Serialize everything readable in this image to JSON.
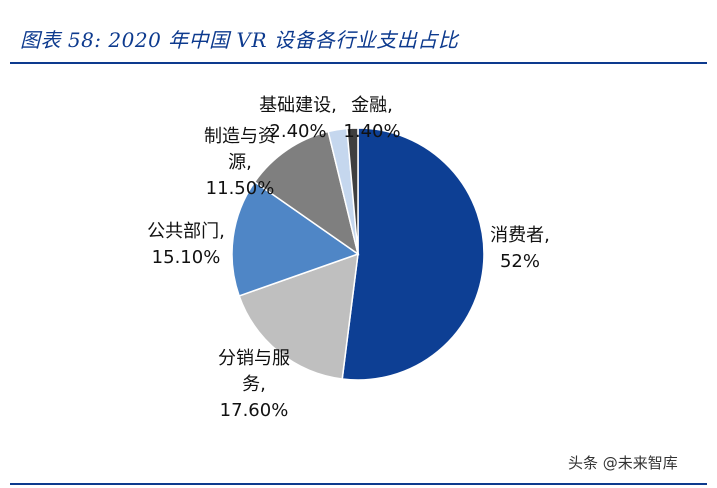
{
  "header": {
    "title": "图表 58:  2020 年中国 VR 设备各行业支出占比"
  },
  "chart_data": {
    "type": "pie",
    "start_angle_deg": 0,
    "direction": "clockwise",
    "slices": [
      {
        "name": "消费者",
        "value": 52.0,
        "display": "52%",
        "label_lines": [
          "消费者,",
          "52%"
        ],
        "color": "#0d3f94"
      },
      {
        "name": "分销与服务",
        "value": 17.6,
        "display": "17.60%",
        "label_lines": [
          "分销与服",
          "务,",
          "17.60%"
        ],
        "color": "#bfbfbf"
      },
      {
        "name": "公共部门",
        "value": 15.1,
        "display": "15.10%",
        "label_lines": [
          "公共部门,",
          "15.10%"
        ],
        "color": "#4f86c6"
      },
      {
        "name": "制造与资源",
        "value": 11.5,
        "display": "11.50%",
        "label_lines": [
          "制造与资",
          "源,",
          "11.50%"
        ],
        "color": "#7f7f7f"
      },
      {
        "name": "基础建设",
        "value": 2.4,
        "display": "2.40%",
        "label_lines": [
          "基础建设,",
          "2.40%"
        ],
        "color": "#c5d7ee"
      },
      {
        "name": "金融",
        "value": 1.4,
        "display": "1.40%",
        "label_lines": [
          "金融,",
          "1.40%"
        ],
        "color": "#3f3f3f"
      }
    ]
  },
  "footer": {
    "watermark": "头条 @未来智库"
  }
}
